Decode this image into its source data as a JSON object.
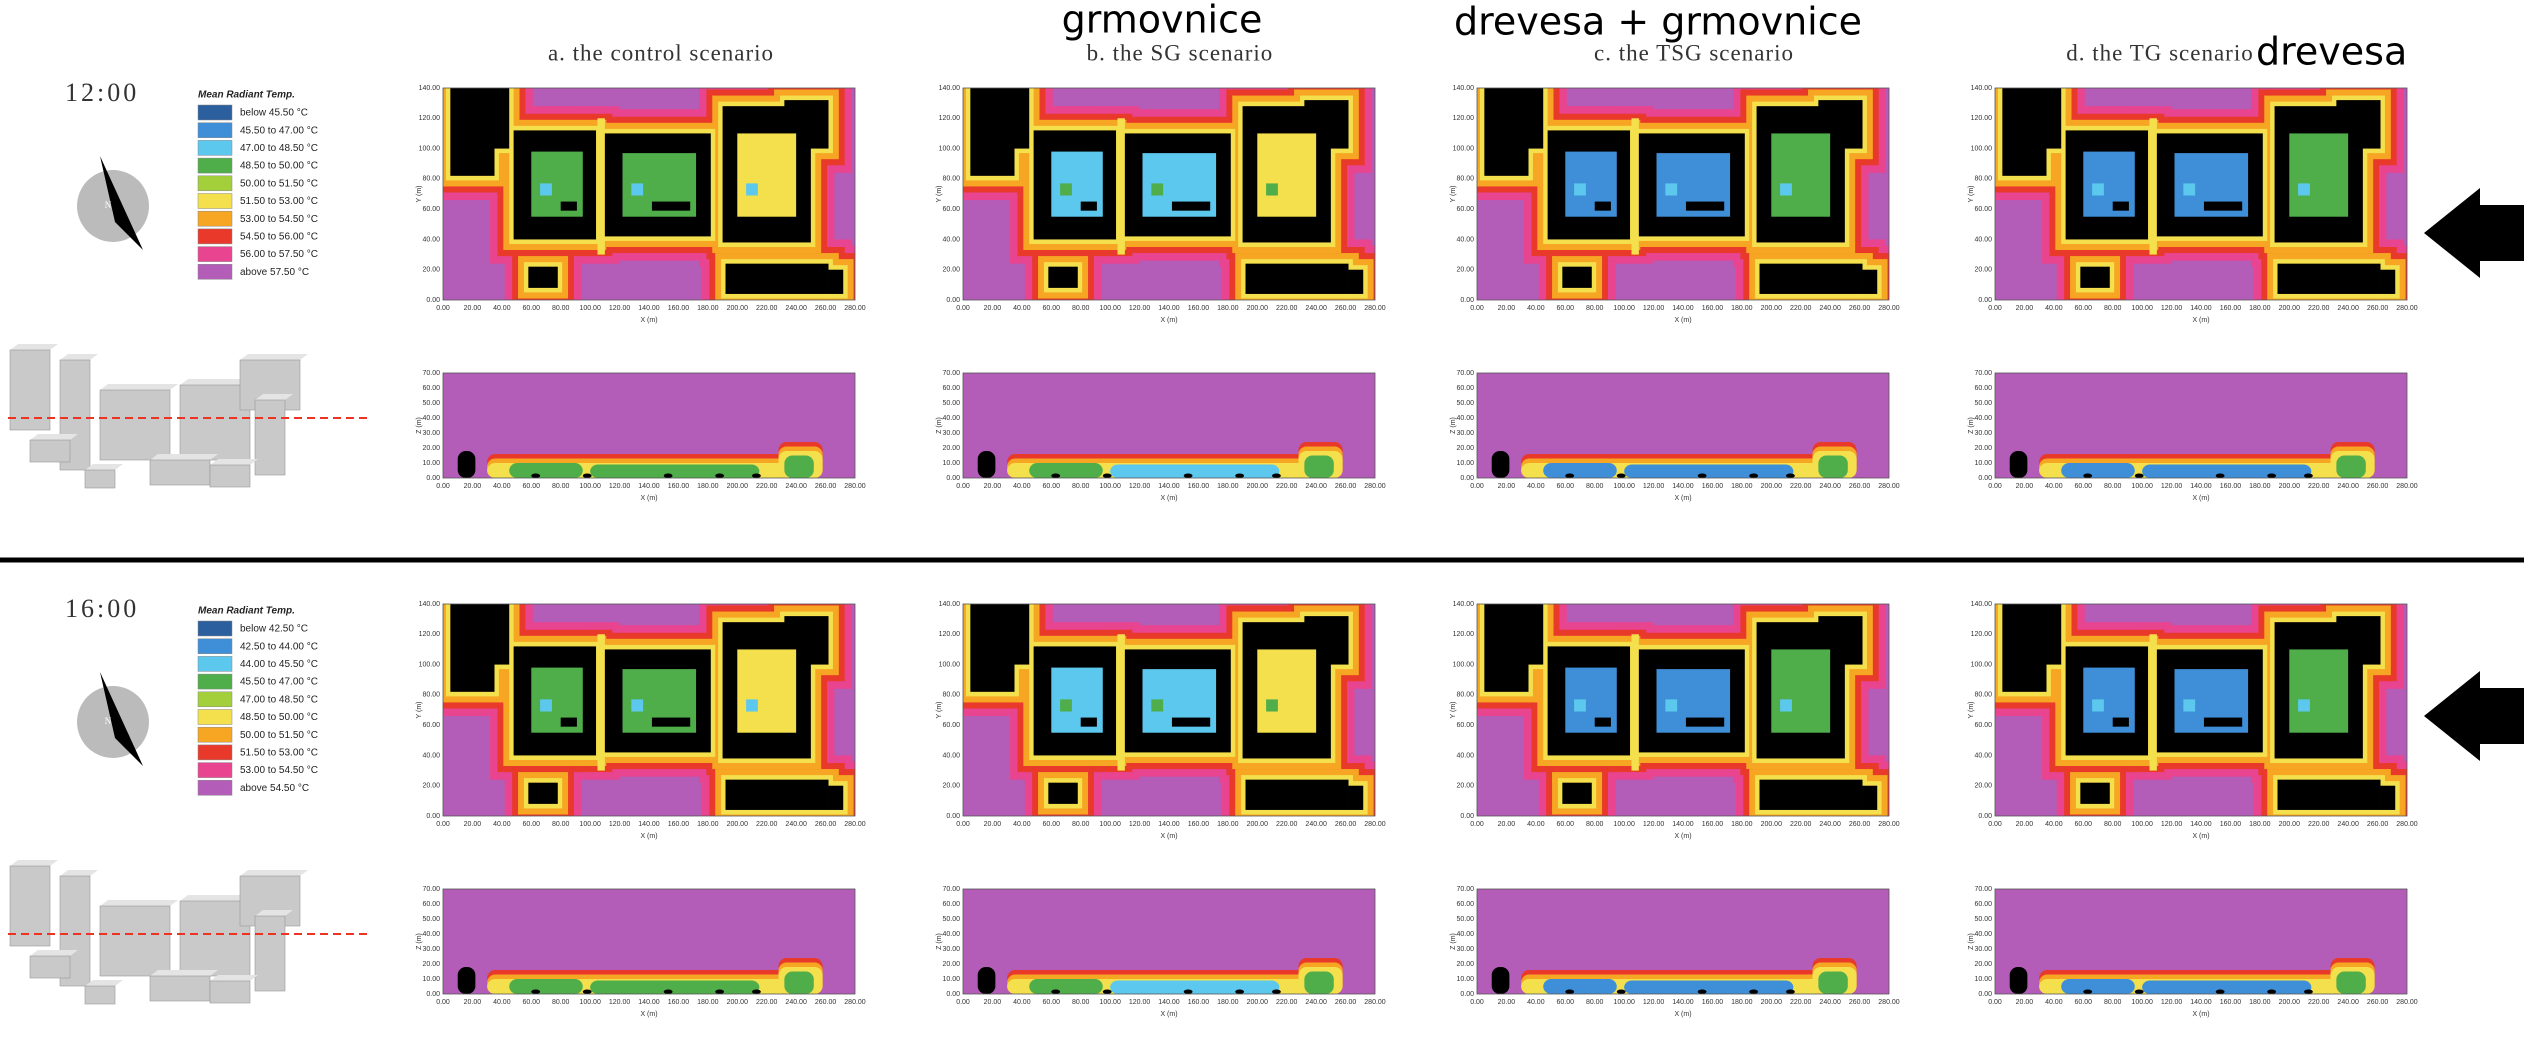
{
  "columns": [
    "a. the control scenario",
    "b. the SG scenario",
    "c. the TSG scenario",
    "d. the TG scenario"
  ],
  "annotations": {
    "b": "grmovnice",
    "c": "drevesa + grmovnice",
    "d": "drevesa"
  },
  "compass": "N",
  "legend_colors": [
    "#2b5f9e",
    "#3f8fd8",
    "#5cc8ee",
    "#4fae4a",
    "#a3cf3a",
    "#f4e04d",
    "#f6a623",
    "#e8392a",
    "#e8448f",
    "#b35cb8"
  ],
  "rows": [
    {
      "time": "12:00",
      "legend_title": "Mean Radiant Temp.",
      "legend_items": [
        "below 45.50 °C",
        "45.50 to 47.00 °C",
        "47.00 to 48.50 °C",
        "48.50 to 50.00 °C",
        "50.00 to 51.50 °C",
        "51.50 to 53.00 °C",
        "53.00 to 54.50 °C",
        "54.50 to 56.00 °C",
        "56.00 to 57.50 °C",
        "above 57.50 °C"
      ]
    },
    {
      "time": "16:00",
      "legend_title": "Mean Radiant Temp.",
      "legend_items": [
        "below 42.50 °C",
        "42.50 to 44.00 °C",
        "44.00 to 45.50 °C",
        "45.50 to 47.00 °C",
        "47.00 to 48.50 °C",
        "48.50 to 50.00 °C",
        "50.00 to 51.50 °C",
        "51.50 to 53.00 °C",
        "53.00 to 54.50 °C",
        "above 54.50 °C"
      ]
    }
  ],
  "plan_axes": {
    "x_label": "X (m)",
    "y_label": "Y (m)",
    "x_ticks": [
      "0.00",
      "20.00",
      "40.00",
      "60.00",
      "80.00",
      "100.00",
      "120.00",
      "140.00",
      "160.00",
      "180.00",
      "200.00",
      "220.00",
      "240.00",
      "260.00",
      "280.00"
    ],
    "y_ticks": [
      "0.00",
      "20.00",
      "40.00",
      "60.00",
      "80.00",
      "100.00",
      "120.00",
      "140.00"
    ]
  },
  "section_axes": {
    "x_label": "X (m)",
    "z_label": "Z (m)",
    "x_ticks": [
      "0.00",
      "20.00",
      "40.00",
      "60.00",
      "80.00",
      "100.00",
      "120.00",
      "140.00",
      "160.00",
      "180.00",
      "200.00",
      "220.00",
      "240.00",
      "260.00",
      "280.00"
    ],
    "z_ticks": [
      "0.00",
      "10.00",
      "20.00",
      "30.00",
      "40.00",
      "50.00",
      "60.00",
      "70.00"
    ]
  }
}
